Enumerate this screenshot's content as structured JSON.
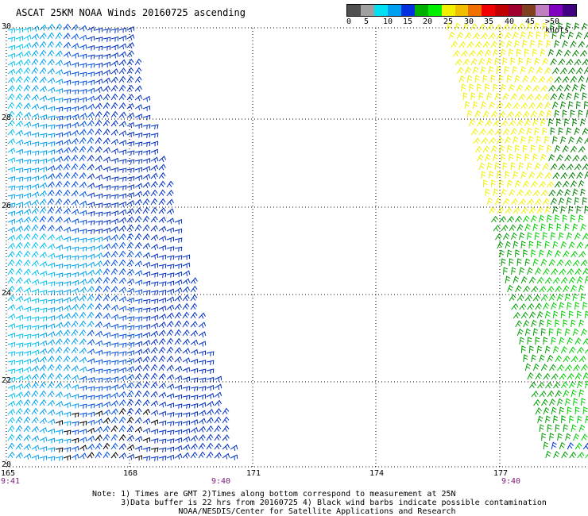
{
  "title": "ASCAT 25KM NOAA Winds 20160725 ascending",
  "legend": {
    "labels": [
      "0",
      "5",
      "10",
      "15",
      "20",
      "25",
      "30",
      "35",
      "40",
      "45",
      ">50 knots"
    ],
    "colors": [
      "#505050",
      "#a0a0a0",
      "#00e0f0",
      "#00a0f0",
      "#0030e0",
      "#00b000",
      "#00f000",
      "#f0f000",
      "#f0c000",
      "#f07000",
      "#f00000",
      "#c00000",
      "#a00030",
      "#804020",
      "#c080c0",
      "#8000c0",
      "#400080"
    ]
  },
  "map": {
    "lat_labels": [
      "30",
      "28",
      "26",
      "24",
      "22",
      "20"
    ],
    "lon_labels": [
      "165",
      "168",
      "171",
      "174",
      "177"
    ],
    "times": [
      "9:41",
      "9:40",
      "9:40"
    ],
    "swaths": [
      {
        "name": "west",
        "colors": [
          "#0030c0",
          "#0050e0",
          "#00a0f0",
          "#00c0f0"
        ]
      },
      {
        "name": "east",
        "colors": [
          "#f0f000",
          "#00a000",
          "#00d000",
          "#008000"
        ]
      }
    ]
  },
  "note": {
    "line1": "Note: 1) Times are GMT 2)Times along bottom correspond to measurement at 25N",
    "line2": "      3)Data buffer is 22 hrs from 20160725 4) Black wind barbs indicate possible contamination",
    "line3": "                  NOAA/NESDIS/Center for Satellite Applications and Research"
  }
}
